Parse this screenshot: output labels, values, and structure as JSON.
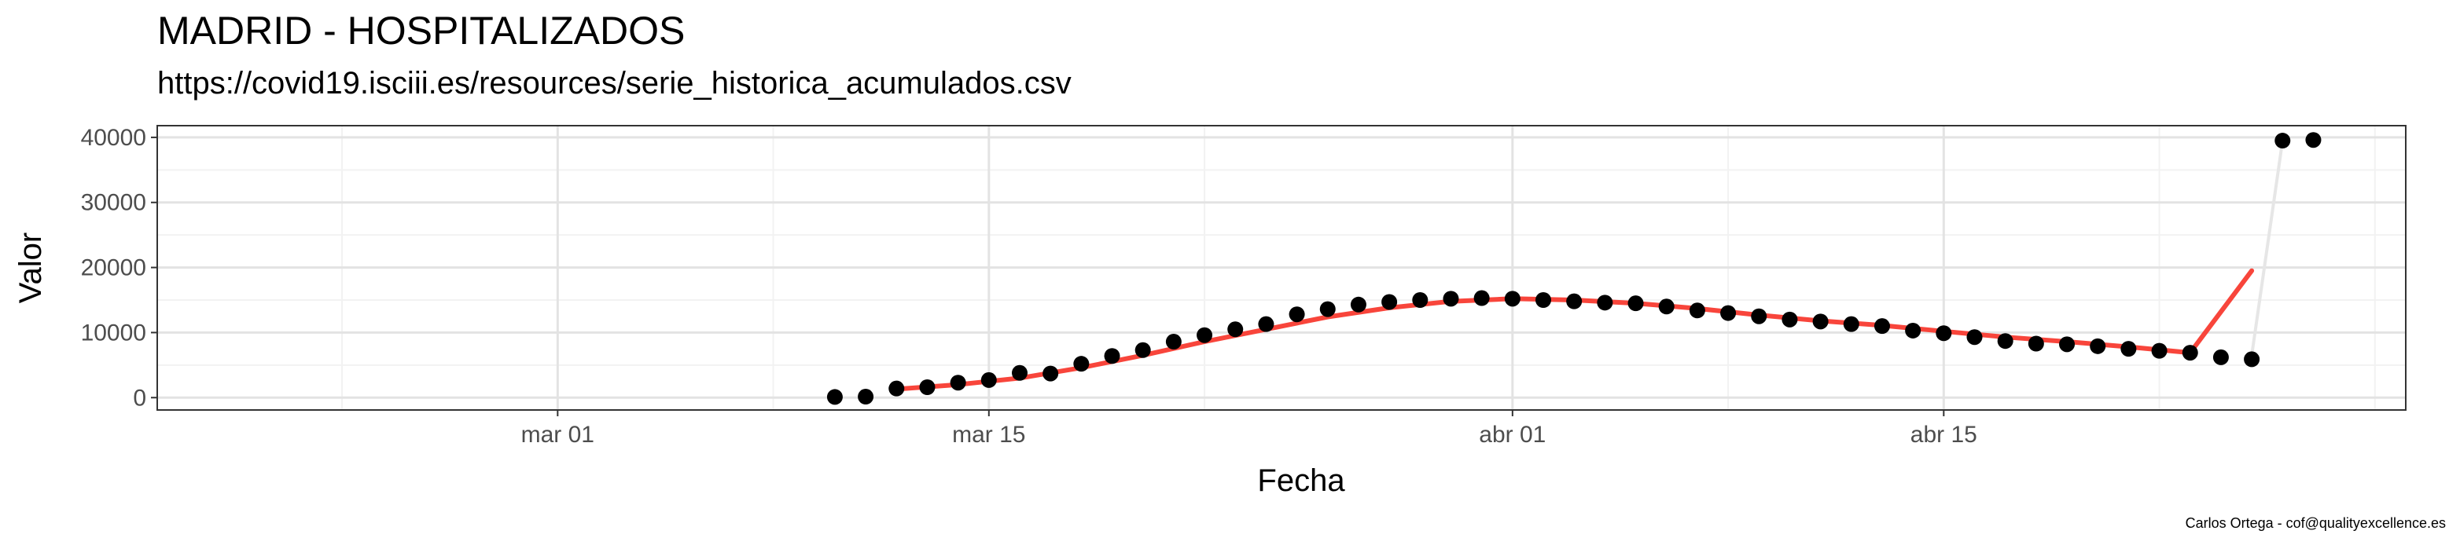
{
  "chart_data": {
    "type": "scatter",
    "title": "MADRID - HOSPITALIZADOS",
    "subtitle": "https://covid19.isciii.es/resources/serie_historica_acumulados.csv",
    "xlabel": "Fecha",
    "ylabel": "Valor",
    "caption": "Carlos Ortega - cof@qualityexcellence.es",
    "x_range": [
      "2020-02-17",
      "2020-04-30"
    ],
    "ylim": [
      -1900,
      41800
    ],
    "y_ticks": [
      0,
      10000,
      20000,
      30000,
      40000
    ],
    "y_tick_labels": [
      "0",
      "10000",
      "20000",
      "30000",
      "40000"
    ],
    "x_ticks": [
      "2020-03-01",
      "2020-03-15",
      "2020-04-01",
      "2020-04-15"
    ],
    "x_tick_labels": [
      "mar 01",
      "mar 15",
      "abr 01",
      "abr 15"
    ],
    "x_minor_ticks": [
      "2020-02-23",
      "2020-03-08",
      "2020-03-22",
      "2020-04-08",
      "2020-04-22",
      "2020-04-29"
    ],
    "y_minor_ticks": [
      5000,
      15000,
      25000,
      35000
    ],
    "grid": true,
    "points": {
      "dates": [
        "2020-03-10",
        "2020-03-11",
        "2020-03-12",
        "2020-03-13",
        "2020-03-14",
        "2020-03-15",
        "2020-03-16",
        "2020-03-17",
        "2020-03-18",
        "2020-03-19",
        "2020-03-20",
        "2020-03-21",
        "2020-03-22",
        "2020-03-23",
        "2020-03-24",
        "2020-03-25",
        "2020-03-26",
        "2020-03-27",
        "2020-03-28",
        "2020-03-29",
        "2020-03-30",
        "2020-03-31",
        "2020-04-01",
        "2020-04-02",
        "2020-04-03",
        "2020-04-04",
        "2020-04-05",
        "2020-04-06",
        "2020-04-07",
        "2020-04-08",
        "2020-04-09",
        "2020-04-10",
        "2020-04-11",
        "2020-04-12",
        "2020-04-13",
        "2020-04-14",
        "2020-04-15",
        "2020-04-16",
        "2020-04-17",
        "2020-04-18",
        "2020-04-19",
        "2020-04-20",
        "2020-04-21",
        "2020-04-22",
        "2020-04-23",
        "2020-04-24",
        "2020-04-25",
        "2020-04-26"
      ],
      "values": [
        100,
        150,
        1400,
        1600,
        2300,
        2700,
        3800,
        3700,
        5200,
        6400,
        7300,
        8600,
        9600,
        10500,
        11300,
        12800,
        13600,
        14300,
        14700,
        15000,
        15200,
        15300,
        15200,
        15000,
        14800,
        14600,
        14500,
        14000,
        13400,
        13000,
        12500,
        12000,
        11700,
        11300,
        11000,
        10300,
        9900,
        9300,
        8700,
        8300,
        8200,
        7900,
        7500,
        7200,
        6900,
        6200,
        5900,
        39500
      ],
      "color": "#000000"
    },
    "last_point": {
      "date": "2020-04-27",
      "value": 39600
    },
    "trend": {
      "color": "#f8453b",
      "dates": [
        "2020-03-12",
        "2020-03-14",
        "2020-03-16",
        "2020-03-18",
        "2020-03-20",
        "2020-03-22",
        "2020-03-24",
        "2020-03-26",
        "2020-03-28",
        "2020-03-30",
        "2020-04-01",
        "2020-04-03",
        "2020-04-05",
        "2020-04-07",
        "2020-04-09",
        "2020-04-11",
        "2020-04-13",
        "2020-04-15",
        "2020-04-17",
        "2020-04-19",
        "2020-04-21",
        "2020-04-23",
        "2020-04-25"
      ],
      "values": [
        1300,
        2000,
        3000,
        4600,
        6500,
        8600,
        10500,
        12400,
        13800,
        14800,
        15200,
        15000,
        14500,
        13700,
        12700,
        11800,
        11100,
        10200,
        9300,
        8600,
        7800,
        6900,
        19500
      ]
    },
    "connector": {
      "color": "#e6e6e6",
      "dates": [
        "2020-04-25",
        "2020-04-26"
      ],
      "values": [
        6500,
        39500
      ]
    }
  }
}
